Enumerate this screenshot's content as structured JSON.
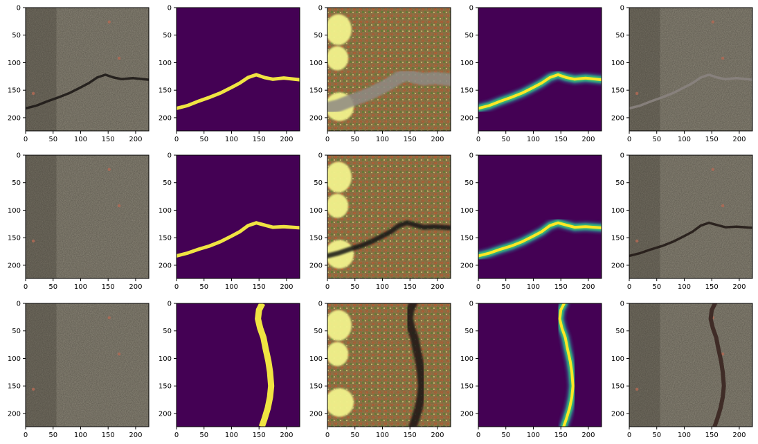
{
  "chart_data": {
    "type": "image_grid",
    "rows": 3,
    "cols": 5,
    "x_range": [
      0,
      224
    ],
    "y_range": [
      0,
      224
    ],
    "x_ticks": [
      0,
      50,
      100,
      150,
      200
    ],
    "y_ticks": [
      0,
      50,
      100,
      150,
      200
    ],
    "tick_labels": {
      "x": [
        "0",
        "50",
        "100",
        "150",
        "200"
      ],
      "y": [
        "0",
        "50",
        "100",
        "150",
        "200"
      ]
    },
    "colors": {
      "mask_background": "#440154",
      "mask_crack": "#f0e442",
      "heatmap_glow": "#35b779",
      "heatmap_core": "#fde725",
      "asphalt": "#8a8577",
      "crack_dark": "#1e1a17",
      "gan_light": "#f2f28c",
      "gan_mid": "#9a7b4a"
    },
    "crack_paths": [
      [
        [
          0,
          183
        ],
        [
          20,
          178
        ],
        [
          40,
          170
        ],
        [
          60,
          163
        ],
        [
          80,
          155
        ],
        [
          100,
          145
        ],
        [
          115,
          137
        ],
        [
          130,
          127
        ],
        [
          145,
          122
        ],
        [
          160,
          127
        ],
        [
          175,
          130
        ],
        [
          195,
          128
        ],
        [
          224,
          131
        ]
      ],
      [
        [
          0,
          183
        ],
        [
          20,
          178
        ],
        [
          40,
          171
        ],
        [
          60,
          165
        ],
        [
          80,
          157
        ],
        [
          100,
          147
        ],
        [
          115,
          139
        ],
        [
          130,
          128
        ],
        [
          145,
          123
        ],
        [
          160,
          127
        ],
        [
          175,
          131
        ],
        [
          195,
          130
        ],
        [
          224,
          132
        ]
      ],
      [
        [
          156,
          0
        ],
        [
          150,
          12
        ],
        [
          148,
          28
        ],
        [
          152,
          45
        ],
        [
          158,
          62
        ],
        [
          162,
          82
        ],
        [
          167,
          105
        ],
        [
          170,
          125
        ],
        [
          172,
          150
        ],
        [
          170,
          170
        ],
        [
          166,
          190
        ],
        [
          160,
          210
        ],
        [
          155,
          224
        ]
      ]
    ],
    "panels": [
      {
        "kind": "photo",
        "crack": 0,
        "crack_color": "#1e1a17"
      },
      {
        "kind": "mask",
        "crack": 0
      },
      {
        "kind": "gan",
        "crack": 0,
        "crack_color": "#8f8a84"
      },
      {
        "kind": "heatmap",
        "crack": 0
      },
      {
        "kind": "photo",
        "crack": 0,
        "crack_color": "#8a8380"
      },
      {
        "kind": "photo",
        "crack": null
      },
      {
        "kind": "mask",
        "crack": 1
      },
      {
        "kind": "gan",
        "crack": 1,
        "crack_color": "#141414"
      },
      {
        "kind": "heatmap",
        "crack": 1
      },
      {
        "kind": "photo",
        "crack": 1,
        "crack_color": "#241b17"
      },
      {
        "kind": "photo",
        "crack": null
      },
      {
        "kind": "mask",
        "crack": 2
      },
      {
        "kind": "gan",
        "crack": 2,
        "crack_color": "#1a1816"
      },
      {
        "kind": "heatmap",
        "crack": 2
      },
      {
        "kind": "photo",
        "crack": 2,
        "crack_color": "#3a2520"
      }
    ]
  }
}
